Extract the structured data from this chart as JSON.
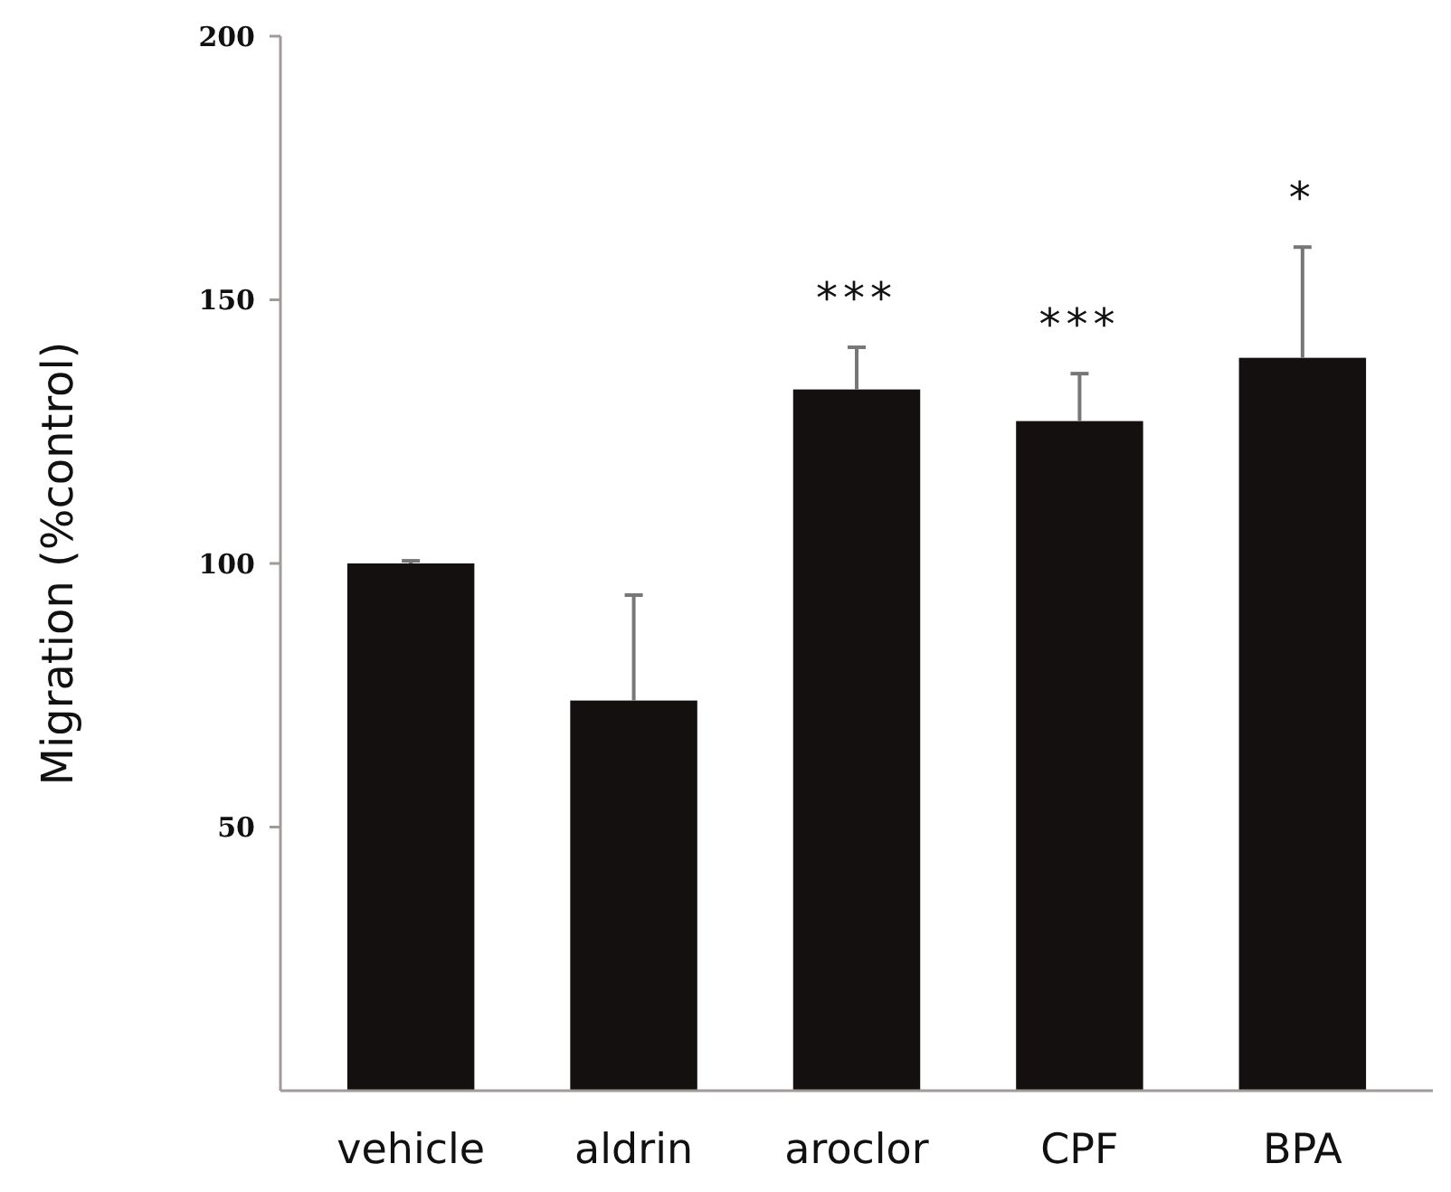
{
  "chart_data": {
    "type": "bar",
    "ylabel": "Migration (%control)",
    "categories": [
      "vehicle",
      "aldrin",
      "aroclor",
      "CPF",
      "BPA"
    ],
    "values": [
      100,
      74,
      133,
      127,
      139
    ],
    "errors": [
      [
        100,
        100.5
      ],
      [
        74,
        94
      ],
      [
        133,
        141
      ],
      [
        127,
        136
      ],
      [
        139,
        160
      ]
    ],
    "color": "#141010",
    "ylim": [
      0,
      200
    ],
    "yticks": [
      50,
      100,
      150,
      200
    ],
    "grid": false,
    "annotations": [
      "***",
      "***",
      "*"
    ]
  }
}
